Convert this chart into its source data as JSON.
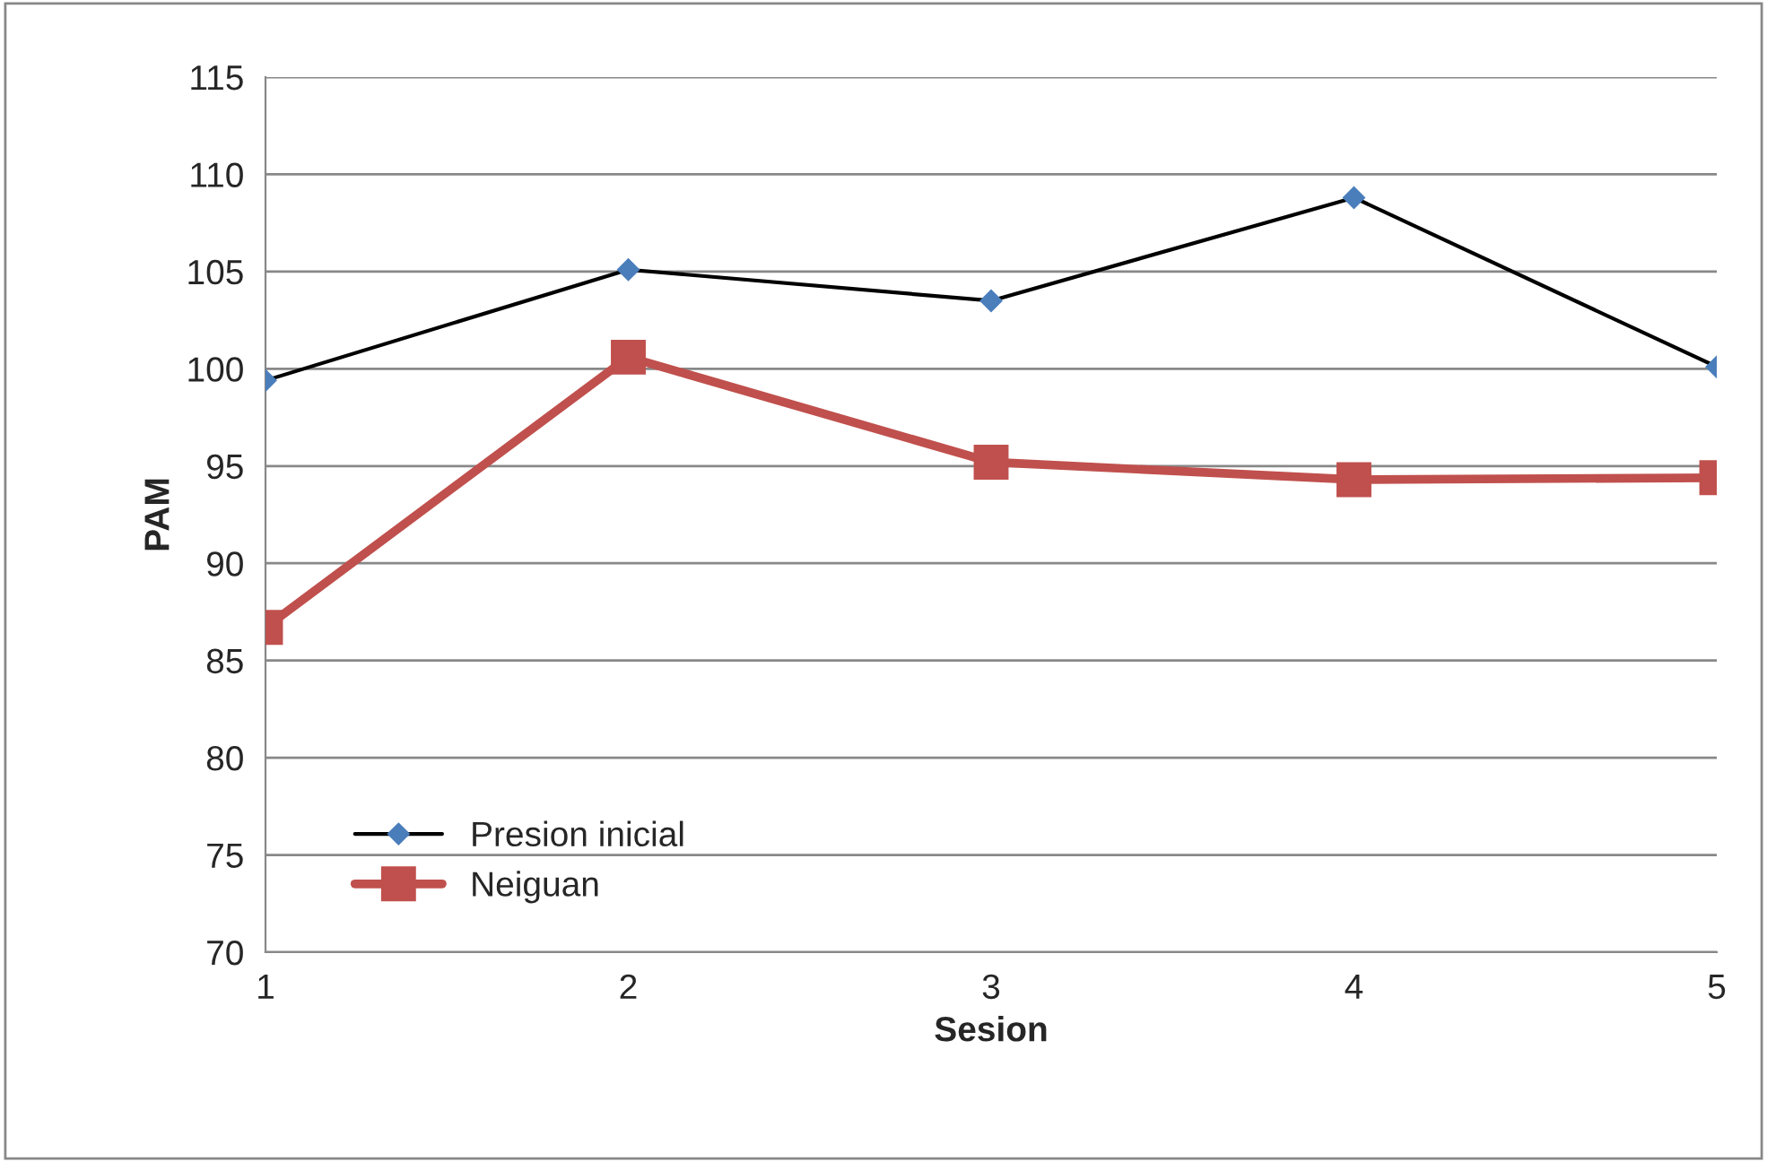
{
  "chart_data": {
    "type": "line",
    "xlabel": "Sesion",
    "ylabel": "PAM",
    "x": [
      1,
      2,
      3,
      4,
      5
    ],
    "series": [
      {
        "name": "Presion inicial",
        "color": "#4a7ebb",
        "marker": "diamond",
        "values": [
          99.4,
          105.1,
          103.5,
          108.8,
          100.1
        ]
      },
      {
        "name": "Neiguan",
        "color": "#c0504d",
        "marker": "square",
        "values": [
          86.7,
          100.6,
          95.2,
          94.3,
          94.4
        ]
      }
    ],
    "xlim": [
      1,
      5
    ],
    "xticks": [
      1,
      2,
      3,
      4,
      5
    ],
    "ylim": [
      70,
      115
    ],
    "yticks": [
      70,
      75,
      80,
      85,
      90,
      95,
      100,
      105,
      110,
      115
    ],
    "grid": "y",
    "legend": "bottom left",
    "line_style": "solid"
  }
}
